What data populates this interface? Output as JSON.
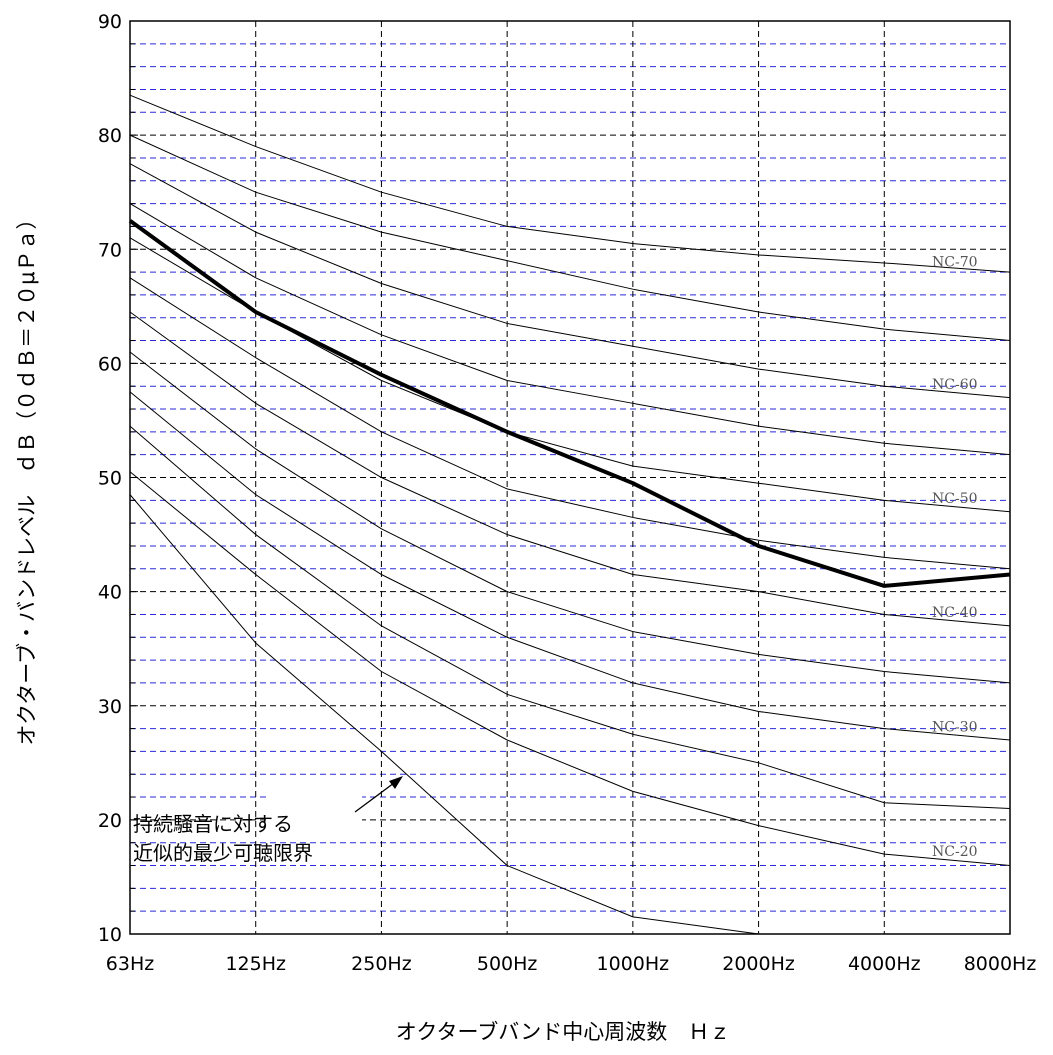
{
  "chart_data": {
    "type": "line",
    "x": [
      "63Hz",
      "125Hz",
      "250Hz",
      "500Hz",
      "1000Hz",
      "2000Hz",
      "4000Hz",
      "8000Hz"
    ],
    "ylim": [
      10,
      90
    ],
    "yticks": [
      "10",
      "20",
      "30",
      "40",
      "50",
      "60",
      "70",
      "80",
      "90"
    ],
    "xlabel": "オクターブバンド中心周波数　Ｈｚ",
    "ylabel": "オクターブ・バンドレベル　ｄＢ（０ｄＢ＝２０μＰａ）",
    "grid": {
      "major_y": "black dashed every 10",
      "minor_y": "blue dashed every 2",
      "x": "black dashed"
    },
    "curves": [
      {
        "name": "NC-70",
        "values": [
          83.5,
          79,
          75,
          72,
          70.5,
          69.5,
          68.8,
          68
        ]
      },
      {
        "name": "",
        "values": [
          80,
          75,
          71.5,
          69,
          66.5,
          64.5,
          63,
          62
        ]
      },
      {
        "name": "NC-60",
        "values": [
          77.5,
          71.5,
          67,
          63.5,
          61.5,
          59.5,
          58,
          57
        ]
      },
      {
        "name": "",
        "values": [
          74,
          67.5,
          62.5,
          58.5,
          56.5,
          54.5,
          53,
          52
        ]
      },
      {
        "name": "NC-50",
        "values": [
          71,
          64.5,
          58.5,
          54,
          51,
          49.5,
          48,
          47
        ]
      },
      {
        "name": "",
        "values": [
          67.5,
          60.5,
          54,
          49,
          46.5,
          44.5,
          43,
          42
        ]
      },
      {
        "name": "NC-40",
        "values": [
          64.5,
          56.5,
          50,
          45,
          41.5,
          40,
          38,
          37
        ]
      },
      {
        "name": "",
        "values": [
          61,
          52.5,
          45.5,
          40,
          36.5,
          34.5,
          33,
          32
        ]
      },
      {
        "name": "NC-30",
        "values": [
          57.5,
          48.5,
          41.5,
          36,
          32,
          29.5,
          28,
          27
        ]
      },
      {
        "name": "",
        "values": [
          54.5,
          45,
          37,
          31,
          27.5,
          25,
          21.5,
          21
        ]
      },
      {
        "name": "NC-20",
        "values": [
          50.5,
          41.5,
          33,
          27,
          22.5,
          19.5,
          17,
          16
        ]
      }
    ],
    "threshold_curve": {
      "values": [
        48.5,
        35.5,
        26,
        16,
        11.5,
        10,
        null,
        null
      ]
    },
    "bold_curve": {
      "values": [
        72.5,
        64.5,
        59,
        54,
        49.5,
        44,
        40.5,
        41.5
      ]
    },
    "annotation": {
      "line1": "持続騒音に対する",
      "line2": "近似的最少可聴限界"
    }
  }
}
